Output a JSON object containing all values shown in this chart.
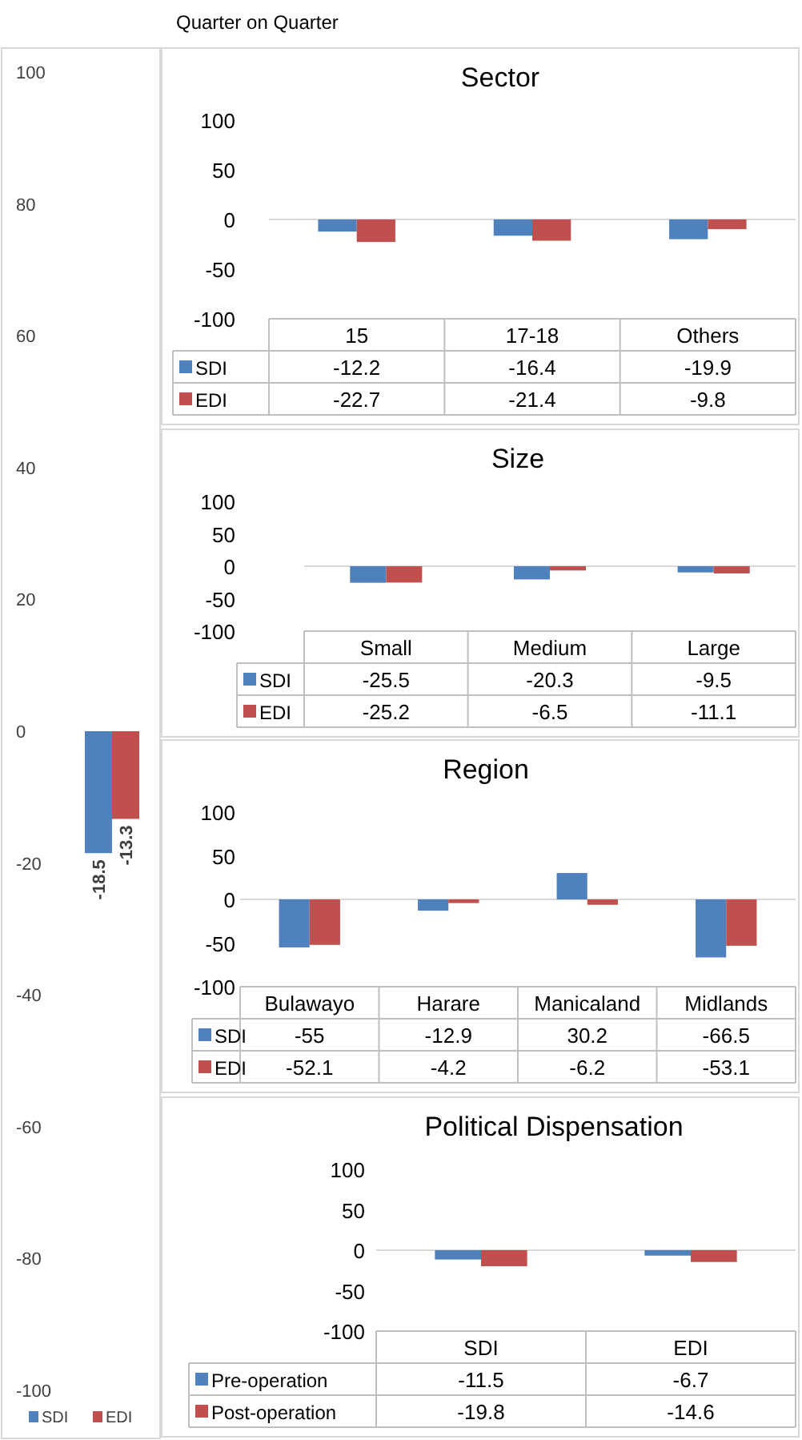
{
  "chart_data": [
    {
      "type": "bar",
      "categories": [
        null
      ],
      "series": [
        {
          "name": "SDI",
          "color": "#4f81bd",
          "values": [
            -18.5
          ]
        },
        {
          "name": "EDI",
          "color": "#c0504d",
          "values": [
            -13.3
          ]
        }
      ],
      "ylim": [
        -100,
        100
      ],
      "yticks": [
        -100,
        -80,
        -60,
        -40,
        -20,
        0,
        20,
        40,
        60,
        80,
        100
      ],
      "legend": "bottom",
      "data_labels": true
    },
    {
      "type": "bar",
      "title": "Sector",
      "annotations": [
        "Quarter on Quarter"
      ],
      "categories": [
        "15",
        "17-18",
        "Others"
      ],
      "series": [
        {
          "name": "SDI",
          "color": "#4f81bd",
          "values": [
            -12.2,
            -16.4,
            -19.9
          ]
        },
        {
          "name": "EDI",
          "color": "#c0504d",
          "values": [
            -22.7,
            -21.4,
            -9.8
          ]
        }
      ],
      "ylim": [
        -100,
        100
      ],
      "yticks": [
        -100,
        -50,
        0,
        50,
        100
      ],
      "legend": "left",
      "data_labels": true
    },
    {
      "type": "bar",
      "title": "Size",
      "categories": [
        "Small",
        "Medium",
        "Large"
      ],
      "series": [
        {
          "name": "SDI",
          "color": "#4f81bd",
          "values": [
            -25.5,
            -20.3,
            -9.5
          ]
        },
        {
          "name": "EDI",
          "color": "#c0504d",
          "values": [
            -25.2,
            -6.5,
            -11.1
          ]
        }
      ],
      "ylim": [
        -100,
        100
      ],
      "yticks": [
        -100,
        -50,
        0,
        50,
        100
      ],
      "legend": "left",
      "data_labels": true
    },
    {
      "type": "bar",
      "title": "Region",
      "categories": [
        "Bulawayo",
        "Harare",
        "Manicaland",
        "Midlands"
      ],
      "series": [
        {
          "name": "SDI",
          "color": "#4f81bd",
          "values": [
            -55,
            -12.9,
            30.2,
            -66.5
          ]
        },
        {
          "name": "EDI",
          "color": "#c0504d",
          "values": [
            -52.1,
            -4.2,
            -6.2,
            -53.1
          ]
        }
      ],
      "ylim": [
        -100,
        100
      ],
      "yticks": [
        -100,
        -50,
        0,
        50,
        100
      ],
      "legend": "left",
      "data_labels": true
    },
    {
      "type": "bar",
      "title": "Political Dispensation",
      "categories": [
        "SDI",
        "EDI"
      ],
      "series": [
        {
          "name": "Pre-operation",
          "color": "#4f81bd",
          "values": [
            -11.5,
            -6.7
          ]
        },
        {
          "name": "Post-operation",
          "color": "#c0504d",
          "values": [
            -19.8,
            -14.6
          ]
        }
      ],
      "ylim": [
        -100,
        100
      ],
      "yticks": [
        -100,
        -50,
        0,
        50,
        100
      ],
      "legend": "left",
      "data_labels": true
    }
  ]
}
